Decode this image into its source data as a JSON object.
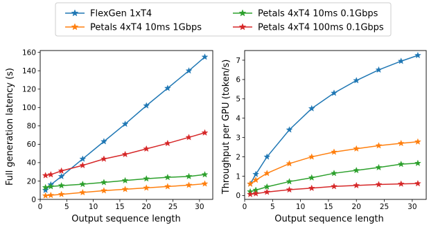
{
  "legend": {
    "items": [
      {
        "label": "FlexGen 1xT4",
        "color": "#1f77b4"
      },
      {
        "label": "Petals 4xT4 10ms 1Gbps",
        "color": "#ff7f0e"
      },
      {
        "label": "Petals 4xT4 10ms 0.1Gbps",
        "color": "#2ca02c"
      },
      {
        "label": "Petals 4xT4 100ms 0.1Gbps",
        "color": "#d62728"
      }
    ]
  },
  "chart_data": [
    {
      "type": "line",
      "xlabel": "Output sequence length",
      "ylabel": "Full generation latency (s)",
      "xlim": [
        0,
        32.5
      ],
      "ylim": [
        0,
        162
      ],
      "xticks": [
        0,
        5,
        10,
        15,
        20,
        25,
        30
      ],
      "yticks": [
        0,
        20,
        40,
        60,
        80,
        100,
        120,
        140,
        160
      ],
      "grid": false,
      "marker": "star",
      "series": [
        {
          "name": "FlexGen 1xT4",
          "color": "#1f77b4",
          "x": [
            1,
            2,
            4,
            8,
            12,
            16,
            20,
            24,
            28,
            31
          ],
          "values": [
            10,
            16,
            25,
            44,
            63,
            82,
            102,
            121,
            140,
            155
          ]
        },
        {
          "name": "Petals 4xT4 10ms 1Gbps",
          "color": "#ff7f0e",
          "x": [
            1,
            2,
            4,
            8,
            12,
            16,
            20,
            24,
            28,
            31
          ],
          "values": [
            4,
            4.5,
            5.5,
            7.5,
            9.5,
            11,
            12.5,
            14,
            15.5,
            17
          ]
        },
        {
          "name": "Petals 4xT4 10ms 0.1Gbps",
          "color": "#2ca02c",
          "x": [
            1,
            2,
            4,
            8,
            12,
            16,
            20,
            24,
            28,
            31
          ],
          "values": [
            13,
            14,
            15,
            16.5,
            18.5,
            20.5,
            22.5,
            24,
            25,
            27
          ]
        },
        {
          "name": "Petals 4xT4 100ms 0.1Gbps",
          "color": "#d62728",
          "x": [
            1,
            2,
            4,
            8,
            12,
            16,
            20,
            24,
            28,
            31
          ],
          "values": [
            26,
            27,
            31,
            37,
            44,
            49,
            55,
            61,
            67.5,
            72.5
          ]
        }
      ]
    },
    {
      "type": "line",
      "xlabel": "Output sequence length",
      "ylabel": "Throughput per GPU (token/s)",
      "xlim": [
        0,
        32.5
      ],
      "ylim": [
        -0.2,
        7.5
      ],
      "xticks": [
        0,
        5,
        10,
        15,
        20,
        25,
        30
      ],
      "yticks": [
        0,
        1,
        2,
        3,
        4,
        5,
        6,
        7
      ],
      "grid": false,
      "marker": "star",
      "series": [
        {
          "name": "FlexGen 1xT4",
          "color": "#1f77b4",
          "x": [
            1,
            2,
            4,
            8,
            12,
            16,
            20,
            24,
            28,
            31
          ],
          "values": [
            0.6,
            1.1,
            2.0,
            3.4,
            4.5,
            5.3,
            5.95,
            6.5,
            6.95,
            7.25
          ]
        },
        {
          "name": "Petals 4xT4 10ms 1Gbps",
          "color": "#ff7f0e",
          "x": [
            1,
            2,
            4,
            8,
            12,
            16,
            20,
            24,
            28,
            31
          ],
          "values": [
            0.6,
            0.8,
            1.15,
            1.65,
            2.0,
            2.25,
            2.42,
            2.58,
            2.7,
            2.78
          ]
        },
        {
          "name": "Petals 4xT4 10ms 0.1Gbps",
          "color": "#2ca02c",
          "x": [
            1,
            2,
            4,
            8,
            12,
            16,
            20,
            24,
            28,
            31
          ],
          "values": [
            0.2,
            0.28,
            0.45,
            0.72,
            0.92,
            1.15,
            1.3,
            1.45,
            1.62,
            1.67
          ]
        },
        {
          "name": "Petals 4xT4 100ms 0.1Gbps",
          "color": "#d62728",
          "x": [
            1,
            2,
            4,
            8,
            12,
            16,
            20,
            24,
            28,
            31
          ],
          "values": [
            0.06,
            0.1,
            0.18,
            0.3,
            0.38,
            0.47,
            0.52,
            0.57,
            0.6,
            0.62
          ]
        }
      ]
    }
  ]
}
